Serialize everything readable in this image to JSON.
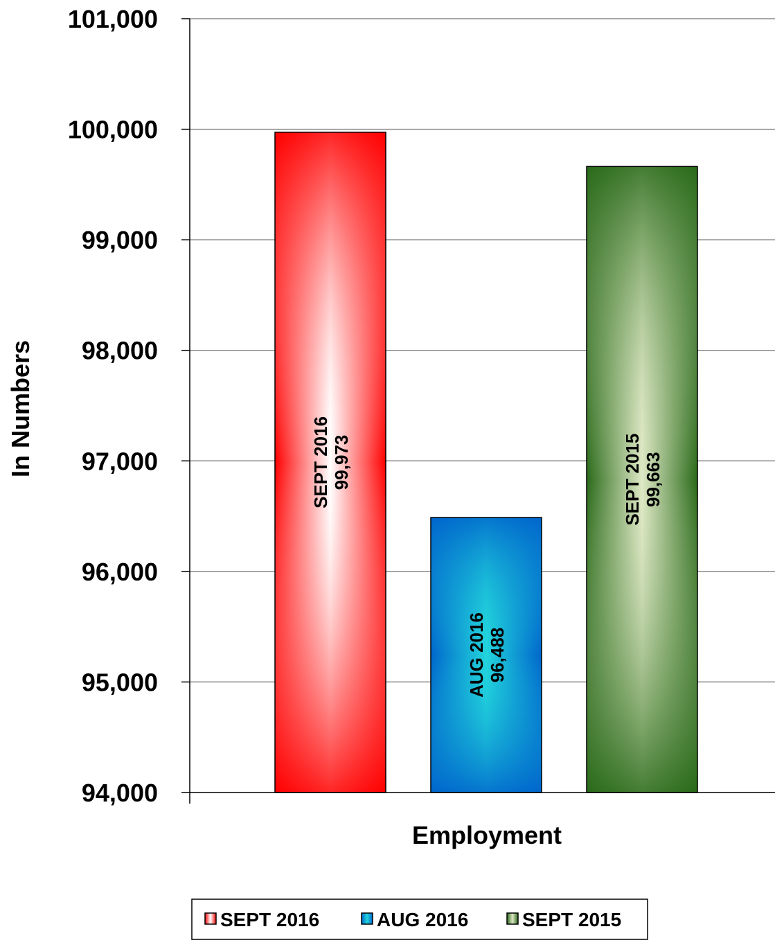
{
  "chart_data": {
    "type": "bar",
    "title": "",
    "xlabel": "Employment",
    "ylabel": "In Numbers",
    "ylim": [
      94000,
      101000
    ],
    "yticks": [
      94000,
      95000,
      96000,
      97000,
      98000,
      99000,
      100000,
      101000
    ],
    "ytick_labels": [
      "94,000",
      "95,000",
      "96,000",
      "97,000",
      "98,000",
      "99,000",
      "100,000",
      "101,000"
    ],
    "grid": true,
    "legend_position": "bottom",
    "categories": [
      "Employment"
    ],
    "series": [
      {
        "name": "SEPT 2016",
        "values": [
          99973
        ],
        "label": "99,973",
        "color": "#ff2020",
        "light": "#ffffff",
        "dark": "#ff0000"
      },
      {
        "name": "AUG 2016",
        "values": [
          96488
        ],
        "label": "96,488",
        "color": "#1f8fe0",
        "light": "#22d4dc",
        "dark": "#0066cc"
      },
      {
        "name": "SEPT 2015",
        "values": [
          99663
        ],
        "label": "99,663",
        "color": "#4a8a2a",
        "light": "#dde8c4",
        "dark": "#2a6a1a"
      }
    ]
  }
}
